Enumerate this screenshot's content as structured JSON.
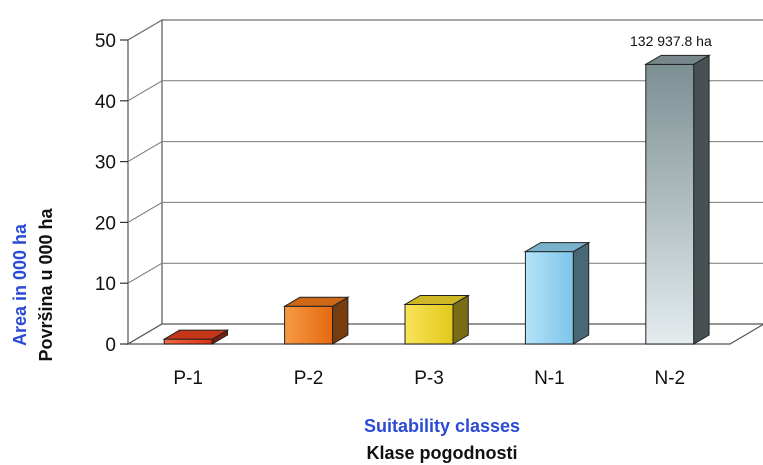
{
  "chart_data": {
    "type": "bar",
    "categories": [
      "P-1",
      "P-2",
      "P-3",
      "N-1",
      "N-2"
    ],
    "values": [
      0.8,
      6.2,
      6.5,
      15.2,
      46.0
    ],
    "ylim": [
      0,
      50
    ],
    "yticks": [
      "0",
      "10",
      "20",
      "30",
      "40",
      "50"
    ],
    "ylabel_en": "Area in 000 ha",
    "ylabel_local": "Površina u 000 ha",
    "xlabel_en": "Suitability classes",
    "xlabel_local": "Klase pogodnosti",
    "annotation": "132 937.8 ha",
    "grid": true,
    "colors": {
      "P-1": "#e8401c",
      "P-2": "#f07a1c",
      "P-3": "#f2d72a",
      "N-1": "#8fd0f0",
      "N-2": "#8d9fa3",
      "ylabel_en": "#2b4bd6",
      "xlabel_en": "#2b4bd6",
      "label_local": "#111111"
    }
  }
}
